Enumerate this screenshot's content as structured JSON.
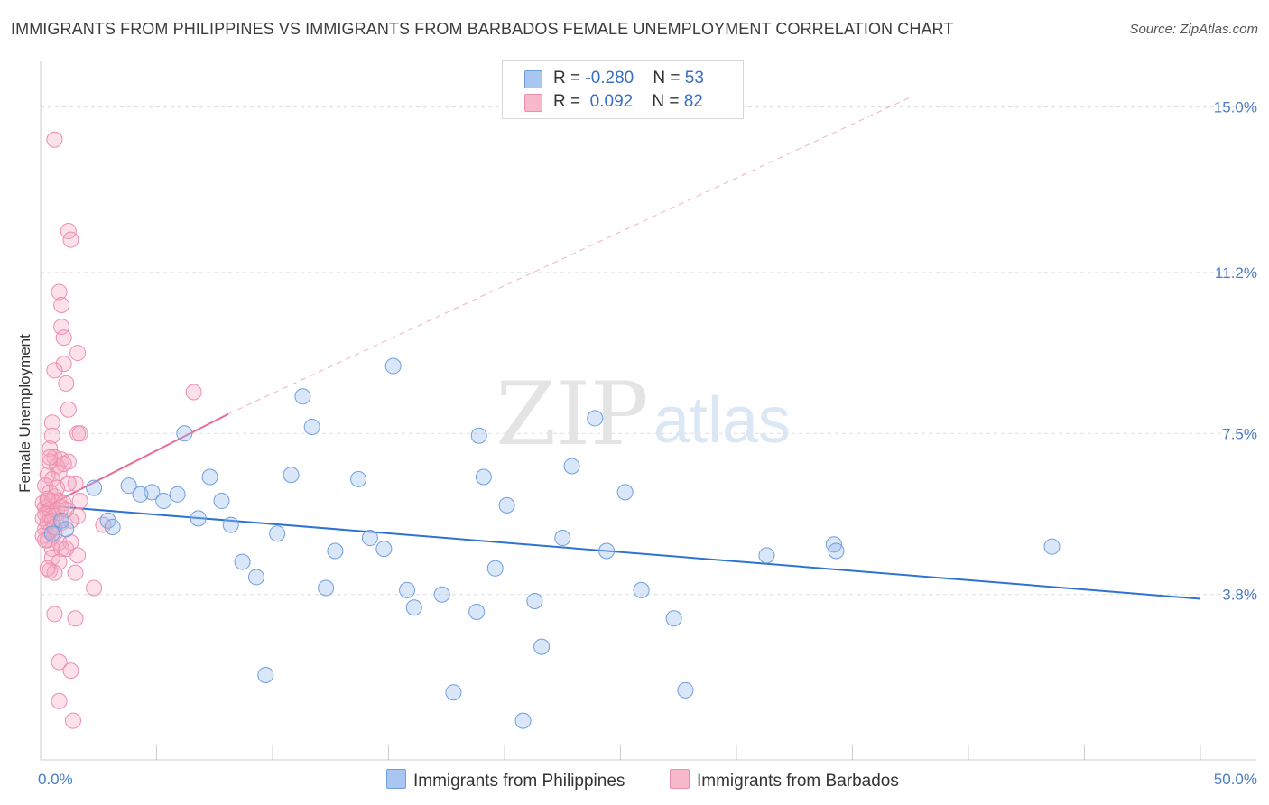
{
  "title": "IMMIGRANTS FROM PHILIPPINES VS IMMIGRANTS FROM BARBADOS FEMALE UNEMPLOYMENT CORRELATION CHART",
  "source": "Source: ZipAtlas.com",
  "watermark": {
    "zip": "ZIP",
    "atlas": "atlas"
  },
  "legend_top": [
    {
      "r_label": "R = ",
      "r_value": "-0.280",
      "n_label": "N = ",
      "n_value": "53",
      "color": "#a8c6f0",
      "border": "#6f9ee0"
    },
    {
      "r_label": "R = ",
      "r_value": " 0.092",
      "n_label": "N = ",
      "n_value": "82",
      "color": "#f7b8cb",
      "border": "#ec8fab"
    }
  ],
  "legend_bottom": [
    {
      "label": "Immigrants from Philippines",
      "color": "#a8c6f0",
      "border": "#6f9ee0"
    },
    {
      "label": "Immigrants from Barbados",
      "color": "#f7b8cb",
      "border": "#ec8fab"
    }
  ],
  "colors": {
    "blue_line": "#2f73d1",
    "pink_line": "#e86c93",
    "blue_fill": "rgba(150,185,235,0.35)",
    "blue_stroke": "#6f9ee0",
    "pink_fill": "rgba(245,170,195,0.35)",
    "pink_stroke": "#ec8fab",
    "grid": "#dddddd",
    "axis": "#cccccc"
  },
  "chart_data": {
    "type": "scatter",
    "xlabel": "",
    "ylabel": "Female Unemployment",
    "xlim": [
      0,
      50
    ],
    "ylim": [
      0,
      15.8
    ],
    "x_tick_labels": [
      {
        "value": 0,
        "label": "0.0%"
      },
      {
        "value": 50,
        "label": "50.0%"
      }
    ],
    "y_tick_labels": [
      {
        "value": 3.8,
        "label": "3.8%"
      },
      {
        "value": 7.5,
        "label": "7.5%"
      },
      {
        "value": 11.2,
        "label": "11.2%"
      },
      {
        "value": 15.0,
        "label": "15.0%"
      }
    ],
    "x_minor_ticks": [
      0,
      5,
      10,
      15,
      20,
      25,
      30,
      35,
      40,
      45,
      50
    ],
    "series": [
      {
        "name": "Immigrants from Philippines",
        "R": -0.28,
        "N": 53,
        "trend": {
          "x": [
            0,
            50
          ],
          "y": [
            5.85,
            3.7
          ]
        },
        "points": [
          [
            0.5,
            5.2
          ],
          [
            0.9,
            5.5
          ],
          [
            1.1,
            5.3
          ],
          [
            2.3,
            6.25
          ],
          [
            2.9,
            5.5
          ],
          [
            3.1,
            5.35
          ],
          [
            3.8,
            6.3
          ],
          [
            4.3,
            6.1
          ],
          [
            4.8,
            6.15
          ],
          [
            5.3,
            5.95
          ],
          [
            5.9,
            6.1
          ],
          [
            6.2,
            7.5
          ],
          [
            6.8,
            5.55
          ],
          [
            7.3,
            6.5
          ],
          [
            7.8,
            5.95
          ],
          [
            8.2,
            5.4
          ],
          [
            8.7,
            4.55
          ],
          [
            9.3,
            4.2
          ],
          [
            9.7,
            1.95
          ],
          [
            10.2,
            5.2
          ],
          [
            10.8,
            6.55
          ],
          [
            11.3,
            8.35
          ],
          [
            11.7,
            7.65
          ],
          [
            12.3,
            3.95
          ],
          [
            12.7,
            4.8
          ],
          [
            13.7,
            6.45
          ],
          [
            14.2,
            5.1
          ],
          [
            14.8,
            4.85
          ],
          [
            15.2,
            9.05
          ],
          [
            15.8,
            3.9
          ],
          [
            16.1,
            3.5
          ],
          [
            17.3,
            3.8
          ],
          [
            18.8,
            3.4
          ],
          [
            18.9,
            7.45
          ],
          [
            19.1,
            6.5
          ],
          [
            19.6,
            4.4
          ],
          [
            20.1,
            5.85
          ],
          [
            21.3,
            3.65
          ],
          [
            21.6,
            2.6
          ],
          [
            22.5,
            5.1
          ],
          [
            22.9,
            6.75
          ],
          [
            23.9,
            7.85
          ],
          [
            24.4,
            4.8
          ],
          [
            25.9,
            3.9
          ],
          [
            25.2,
            6.15
          ],
          [
            27.3,
            3.25
          ],
          [
            27.8,
            1.6
          ],
          [
            31.3,
            4.7
          ],
          [
            34.2,
            4.95
          ],
          [
            34.3,
            4.8
          ],
          [
            43.6,
            4.9
          ],
          [
            20.8,
            0.9
          ],
          [
            17.8,
            1.55
          ]
        ]
      },
      {
        "name": "Immigrants from Barbados",
        "R": 0.092,
        "N": 82,
        "trend": {
          "x": [
            0,
            8.1
          ],
          "y": [
            5.75,
            7.95
          ]
        },
        "trend_extension": {
          "x": [
            8.1,
            37.6
          ],
          "y": [
            7.95,
            15.25
          ]
        },
        "points": [
          [
            0.6,
            14.25
          ],
          [
            1.2,
            12.15
          ],
          [
            1.3,
            11.95
          ],
          [
            0.8,
            10.75
          ],
          [
            0.9,
            10.45
          ],
          [
            0.9,
            9.95
          ],
          [
            1.0,
            9.7
          ],
          [
            1.6,
            9.35
          ],
          [
            1.0,
            9.1
          ],
          [
            0.6,
            8.95
          ],
          [
            1.1,
            8.65
          ],
          [
            6.6,
            8.45
          ],
          [
            1.2,
            8.05
          ],
          [
            0.5,
            7.75
          ],
          [
            0.5,
            7.45
          ],
          [
            1.6,
            7.5
          ],
          [
            1.7,
            7.5
          ],
          [
            0.4,
            7.15
          ],
          [
            0.6,
            6.95
          ],
          [
            0.9,
            6.9
          ],
          [
            1.2,
            6.85
          ],
          [
            0.7,
            6.75
          ],
          [
            0.4,
            6.85
          ],
          [
            0.8,
            6.6
          ],
          [
            0.3,
            6.55
          ],
          [
            1.5,
            6.35
          ],
          [
            0.5,
            6.45
          ],
          [
            1.2,
            6.35
          ],
          [
            0.2,
            6.3
          ],
          [
            0.4,
            6.15
          ],
          [
            0.6,
            6.05
          ],
          [
            0.3,
            5.95
          ],
          [
            0.5,
            5.95
          ],
          [
            0.8,
            5.95
          ],
          [
            1.0,
            5.9
          ],
          [
            1.7,
            5.95
          ],
          [
            0.1,
            5.9
          ],
          [
            0.2,
            5.8
          ],
          [
            0.4,
            5.75
          ],
          [
            0.7,
            5.75
          ],
          [
            0.9,
            5.8
          ],
          [
            0.2,
            5.65
          ],
          [
            0.4,
            5.6
          ],
          [
            0.6,
            5.6
          ],
          [
            1.6,
            5.6
          ],
          [
            0.1,
            5.55
          ],
          [
            0.3,
            5.45
          ],
          [
            0.5,
            5.5
          ],
          [
            0.9,
            5.45
          ],
          [
            1.3,
            5.5
          ],
          [
            2.7,
            5.4
          ],
          [
            0.2,
            5.3
          ],
          [
            0.4,
            5.25
          ],
          [
            0.6,
            5.2
          ],
          [
            0.1,
            5.15
          ],
          [
            0.3,
            5.05
          ],
          [
            0.8,
            5.0
          ],
          [
            1.3,
            5.0
          ],
          [
            0.5,
            4.85
          ],
          [
            0.9,
            4.85
          ],
          [
            1.1,
            4.85
          ],
          [
            1.6,
            4.7
          ],
          [
            0.5,
            4.65
          ],
          [
            0.8,
            4.55
          ],
          [
            0.4,
            4.35
          ],
          [
            0.6,
            4.3
          ],
          [
            1.5,
            4.3
          ],
          [
            2.3,
            3.95
          ],
          [
            0.6,
            3.35
          ],
          [
            1.5,
            3.25
          ],
          [
            0.8,
            2.25
          ],
          [
            1.3,
            2.05
          ],
          [
            0.8,
            1.35
          ],
          [
            1.4,
            0.9
          ],
          [
            0.3,
            4.4
          ],
          [
            0.2,
            5.05
          ],
          [
            0.7,
            6.25
          ],
          [
            1.0,
            6.8
          ],
          [
            0.3,
            6.0
          ],
          [
            0.6,
            5.35
          ],
          [
            1.1,
            5.75
          ],
          [
            0.4,
            6.95
          ]
        ]
      }
    ]
  }
}
